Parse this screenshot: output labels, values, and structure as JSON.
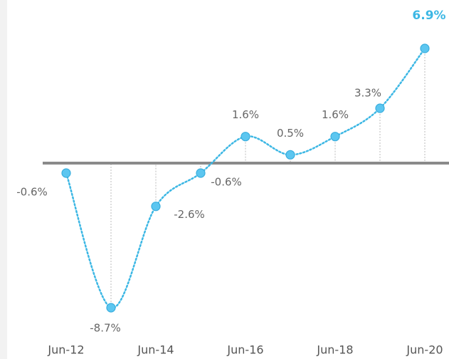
{
  "chart_data": {
    "type": "line",
    "categories": [
      "Jun-12",
      null,
      "Jun-14",
      null,
      "Jun-16",
      null,
      "Jun-18",
      null,
      "Jun-20"
    ],
    "series": [
      {
        "color": "#3cb7e4",
        "values": [
          -0.6,
          -8.7,
          -2.6,
          -0.6,
          1.6,
          0.5,
          1.6,
          3.3,
          6.9
        ],
        "value_labels": [
          "-0.6%",
          "-8.7%",
          "-2.6%",
          "-0.6%",
          "1.6%",
          "0.5%",
          "1.6%",
          "3.3%",
          "6.9%"
        ]
      }
    ],
    "ylim": [
      -9,
      7.5
    ]
  }
}
